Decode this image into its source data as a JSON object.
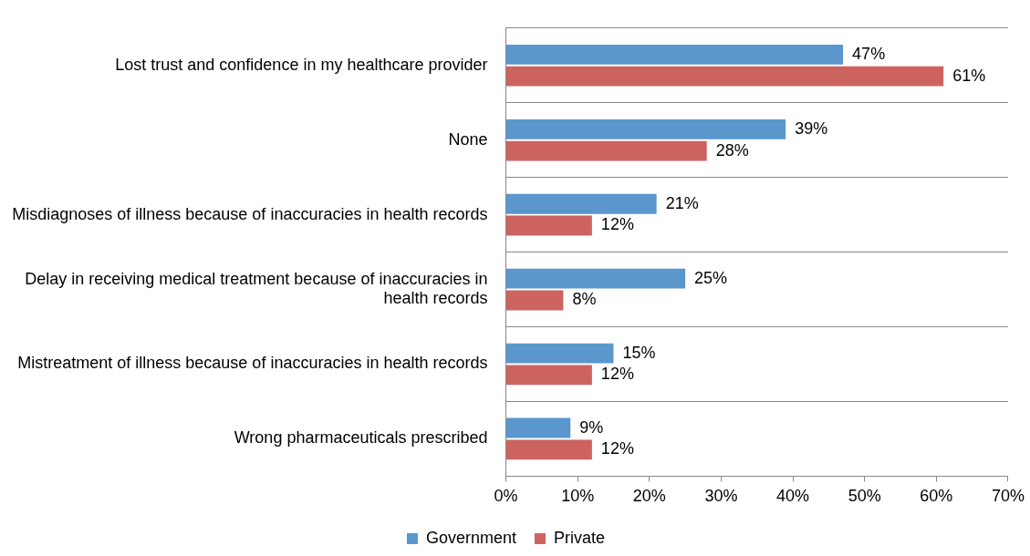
{
  "chart_data": {
    "type": "bar",
    "orientation": "horizontal",
    "categories": [
      "Lost trust and confidence in my healthcare provider",
      "None",
      "Misdiagnoses of illness because of inaccuracies in health records",
      "Delay in receiving medical treatment because of inaccuracies in health records",
      "Mistreatment of illness because of inaccuracies in health records",
      "Wrong pharmaceuticals prescribed"
    ],
    "series": [
      {
        "name": "Government",
        "color": "#5b96cc",
        "values": [
          47,
          39,
          21,
          25,
          15,
          9
        ],
        "value_labels": [
          "47%",
          "39%",
          "21%",
          "25%",
          "15%",
          "9%"
        ]
      },
      {
        "name": "Private",
        "color": "#cd635f",
        "values": [
          61,
          28,
          12,
          8,
          12,
          12
        ],
        "value_labels": [
          "61%",
          "28%",
          "12%",
          "8%",
          "12%",
          "12%"
        ]
      }
    ],
    "xlim": [
      0,
      70
    ],
    "xticks": [
      {
        "value": 0,
        "label": "0%"
      },
      {
        "value": 10,
        "label": "10%"
      },
      {
        "value": 20,
        "label": "20%"
      },
      {
        "value": 30,
        "label": "30%"
      },
      {
        "value": 40,
        "label": "40%"
      },
      {
        "value": 50,
        "label": "50%"
      },
      {
        "value": 60,
        "label": "60%"
      },
      {
        "value": 70,
        "label": "70%"
      }
    ],
    "grid": "y",
    "legend": "bottom"
  }
}
